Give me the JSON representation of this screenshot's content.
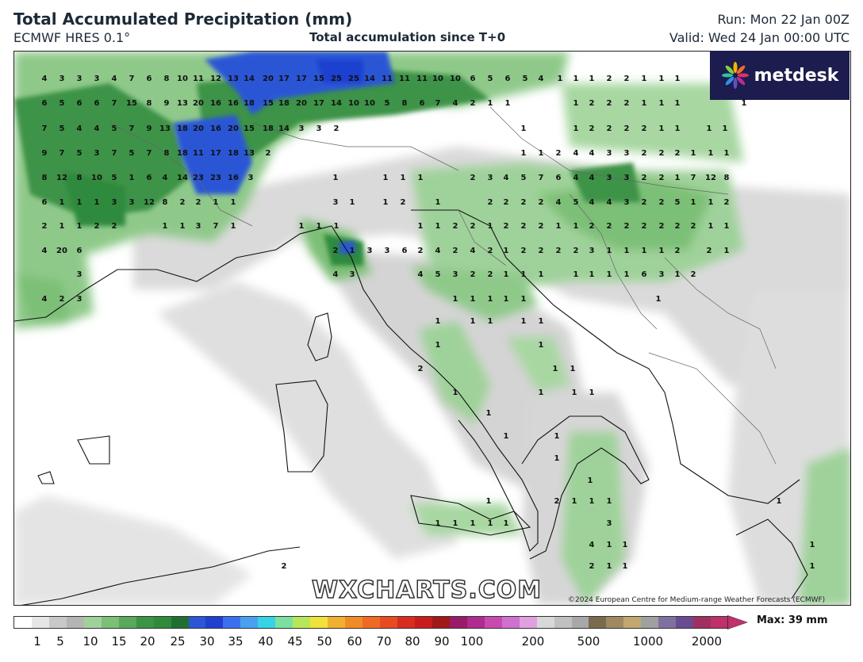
{
  "header": {
    "title": "Total Accumulated Precipitation (mm)",
    "model": "ECMWF HRES 0.1°",
    "subtitle": "Total accumulation since T+0",
    "run": "Run: Mon 22 Jan 00Z",
    "valid": "Valid: Wed 24 Jan 00:00 UTC"
  },
  "logo": {
    "text": "metdesk",
    "icon": "metdesk-flower-logo"
  },
  "watermark": "WXCHARTS.COM",
  "copyright": "©2024 European Centre for Medium-range Weather Forecasts (ECMWF)",
  "legend": {
    "max_label": "Max: 39 mm",
    "ticks": [
      "1",
      "5",
      "10",
      "15",
      "20",
      "25",
      "30",
      "35",
      "40",
      "45",
      "50",
      "60",
      "70",
      "80",
      "90",
      "100",
      "200",
      "500",
      "1000",
      "2000"
    ],
    "colors": [
      "#ffffff",
      "#e6e6e6",
      "#c8c8c8",
      "#b4b4b4",
      "#9fd29a",
      "#7cbf76",
      "#5aa95a",
      "#3d9346",
      "#2f8a3c",
      "#206f32",
      "#2b56d6",
      "#1f3fd0",
      "#3a6ff0",
      "#4aa0f0",
      "#35d3e6",
      "#7be0a0",
      "#b8e65a",
      "#f0e23a",
      "#f0b030",
      "#f08c28",
      "#f06a24",
      "#e84a22",
      "#d82c20",
      "#c81c1c",
      "#a01818",
      "#9a1a6a",
      "#b02a90",
      "#c84ab0",
      "#d070d0",
      "#e0a0e0",
      "#d8d8d8",
      "#c0c0c0",
      "#a8a8a8",
      "#7a6a50",
      "#a08860",
      "#c0a870",
      "#a0a0a0",
      "#8070a0",
      "#6a4a90",
      "#a03060",
      "#c0306a"
    ]
  },
  "values": [
    "4",
    "3",
    "3",
    "3",
    "4",
    "7",
    "6",
    "8",
    "10",
    "11",
    "12",
    "13",
    "14",
    "20",
    "17",
    "17",
    "15",
    "25",
    "25",
    "14",
    "11",
    "11",
    "11",
    "10",
    "10",
    "6",
    "5",
    "6",
    "5",
    "4",
    "1",
    "1",
    "1",
    "2",
    "2",
    "1",
    "1",
    "1",
    "6",
    "5",
    "6",
    "6",
    "7",
    "15",
    "8",
    "9",
    "13",
    "20",
    "16",
    "16",
    "18",
    "15",
    "18",
    "20",
    "17",
    "14",
    "10",
    "10",
    "5",
    "8",
    "6",
    "7",
    "4",
    "2",
    "1",
    "1",
    "1",
    "2",
    "2",
    "2",
    "1",
    "1",
    "1",
    "1",
    "7",
    "5",
    "4",
    "4",
    "5",
    "7",
    "9",
    "13",
    "18",
    "20",
    "16",
    "20",
    "15",
    "18",
    "14",
    "3",
    "3",
    "2",
    "1",
    "1",
    "2",
    "2",
    "2",
    "2",
    "1",
    "1",
    "1",
    "1",
    "9",
    "7",
    "5",
    "3",
    "7",
    "5",
    "7",
    "8",
    "18",
    "11",
    "17",
    "18",
    "13",
    "2",
    "1",
    "1",
    "2",
    "4",
    "4",
    "3",
    "3",
    "2",
    "2",
    "2",
    "1",
    "1",
    "1",
    "8",
    "12",
    "8",
    "10",
    "5",
    "1",
    "6",
    "4",
    "14",
    "23",
    "23",
    "16",
    "3",
    "1",
    "1",
    "1",
    "1",
    "2",
    "3",
    "4",
    "5",
    "7",
    "6",
    "4",
    "4",
    "3",
    "3",
    "2",
    "2",
    "1",
    "7",
    "12",
    "8",
    "6",
    "1",
    "1",
    "1",
    "3",
    "3",
    "12",
    "8",
    "2",
    "2",
    "1",
    "1",
    "3",
    "1",
    "1",
    "2",
    "1",
    "2",
    "2",
    "2",
    "2",
    "4",
    "5",
    "4",
    "4",
    "3",
    "2",
    "2",
    "5",
    "1",
    "1",
    "2",
    "2",
    "1",
    "1",
    "2",
    "2",
    "1",
    "1",
    "3",
    "7",
    "1",
    "1",
    "1",
    "1",
    "1",
    "1",
    "2",
    "2",
    "1",
    "2",
    "2",
    "2",
    "1",
    "1",
    "2",
    "2",
    "2",
    "2",
    "2",
    "2",
    "2",
    "1",
    "1",
    "4",
    "20",
    "6",
    "2",
    "1",
    "3",
    "3",
    "6",
    "2",
    "4",
    "2",
    "4",
    "2",
    "1",
    "2",
    "2",
    "2",
    "2",
    "3",
    "1",
    "1",
    "1",
    "1",
    "2",
    "2",
    "1",
    "3",
    "4",
    "3",
    "4",
    "5",
    "3",
    "2",
    "2",
    "1",
    "1",
    "1",
    "1",
    "1",
    "1",
    "1",
    "6",
    "3",
    "1",
    "2",
    "4",
    "2",
    "3",
    "1",
    "1",
    "1",
    "1",
    "1",
    "1",
    "1",
    "1",
    "1",
    "1",
    "1",
    "1",
    "1",
    "1",
    "1",
    "2",
    "1",
    "1",
    "1",
    "1",
    "1",
    "1",
    "1",
    "1",
    "1",
    "1",
    "2",
    "1",
    "1",
    "1",
    "1",
    "1",
    "1",
    "1",
    "1",
    "3",
    "4",
    "1",
    "1",
    "2",
    "1",
    "1",
    "2",
    "1",
    "1",
    "1",
    "1",
    "2",
    "5",
    "2",
    "2"
  ]
}
